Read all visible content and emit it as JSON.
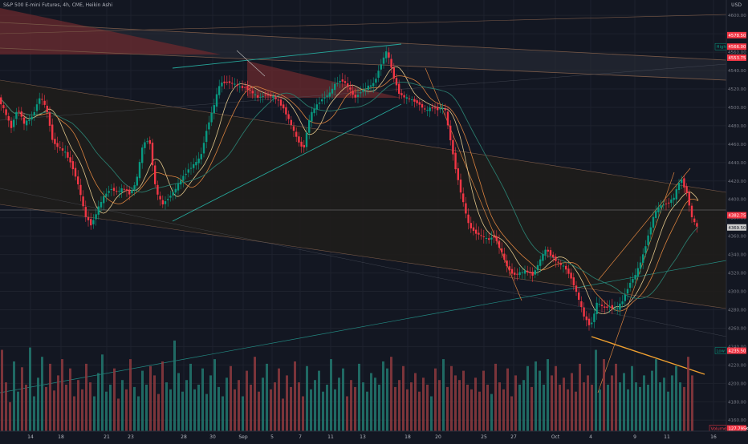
{
  "header": {
    "title": "S&P 500 E-mini Futures, 4h, CME, Heikin Ashi",
    "currency": "USD"
  },
  "price_axis": {
    "ticks": [
      "4600.00",
      "4580.00",
      "4560.00",
      "4540.00",
      "4520.00",
      "4500.00",
      "4480.00",
      "4460.00",
      "4440.00",
      "4420.00",
      "4400.00",
      "4380.00",
      "4360.00",
      "4340.00",
      "4320.00",
      "4300.00",
      "4280.00",
      "4260.00",
      "4240.00",
      "4220.00",
      "4200.00",
      "4180.00",
      "4160.00"
    ],
    "labels": [
      {
        "text": "4578.50",
        "color": "#f23645",
        "value": 4578.5
      },
      {
        "text": "High",
        "color": "#089981",
        "value": 4566
      },
      {
        "text": "4566.00",
        "color": "#f23645",
        "value": 4566
      },
      {
        "text": "4553.75",
        "color": "#f23645",
        "value": 4554
      },
      {
        "text": "4382.75",
        "color": "#f23645",
        "value": 4382.75
      },
      {
        "text": "4369.50",
        "color": "#cccccc",
        "value": 4369.5
      },
      {
        "text": "Low",
        "color": "#089981",
        "value": 4235.5
      },
      {
        "text": "4235.50",
        "color": "#f23645",
        "value": 4235.5
      },
      {
        "text": "Volume",
        "color": "#f23645",
        "value": 4151
      },
      {
        "text": "127.795K",
        "color": "#f23645",
        "value": 4151
      }
    ]
  },
  "time_axis": {
    "labels": [
      "14",
      "18",
      "21",
      "23",
      "28",
      "30",
      "Sep",
      "5",
      "7",
      "11",
      "13",
      "18",
      "20",
      "25",
      "27",
      "Oct",
      "4",
      "9",
      "11",
      "16"
    ]
  },
  "chart_data": {
    "type": "candlestick",
    "title": "S&P 500 E-mini Futures, 4h, CME, Heikin Ashi",
    "xlabel": "",
    "ylabel": "USD",
    "ylim": [
      4148,
      4608
    ],
    "grid": true,
    "up_color": "#089981",
    "down_color": "#f23645",
    "last_price": 4369.5,
    "session_high": 4566.0,
    "session_low": 4235.5,
    "last_volume": "127.795K",
    "price_path": [
      [
        0,
        4510
      ],
      [
        8,
        4495
      ],
      [
        16,
        4478
      ],
      [
        24,
        4500
      ],
      [
        32,
        4482
      ],
      [
        42,
        4490
      ],
      [
        52,
        4512
      ],
      [
        60,
        4498
      ],
      [
        68,
        4462
      ],
      [
        76,
        4456
      ],
      [
        84,
        4450
      ],
      [
        92,
        4436
      ],
      [
        100,
        4414
      ],
      [
        108,
        4382
      ],
      [
        116,
        4372
      ],
      [
        124,
        4390
      ],
      [
        132,
        4404
      ],
      [
        140,
        4412
      ],
      [
        148,
        4408
      ],
      [
        156,
        4412
      ],
      [
        164,
        4406
      ],
      [
        172,
        4420
      ],
      [
        180,
        4460
      ],
      [
        188,
        4466
      ],
      [
        196,
        4410
      ],
      [
        204,
        4394
      ],
      [
        212,
        4402
      ],
      [
        220,
        4410
      ],
      [
        228,
        4422
      ],
      [
        236,
        4432
      ],
      [
        244,
        4438
      ],
      [
        252,
        4446
      ],
      [
        260,
        4478
      ],
      [
        268,
        4500
      ],
      [
        276,
        4526
      ],
      [
        284,
        4528
      ],
      [
        292,
        4526
      ],
      [
        300,
        4522
      ],
      [
        308,
        4522
      ],
      [
        316,
        4516
      ],
      [
        324,
        4510
      ],
      [
        332,
        4514
      ],
      [
        340,
        4512
      ],
      [
        348,
        4508
      ],
      [
        356,
        4498
      ],
      [
        364,
        4482
      ],
      [
        372,
        4466
      ],
      [
        380,
        4454
      ],
      [
        388,
        4490
      ],
      [
        396,
        4502
      ],
      [
        404,
        4510
      ],
      [
        412,
        4514
      ],
      [
        420,
        4526
      ],
      [
        428,
        4530
      ],
      [
        436,
        4522
      ],
      [
        444,
        4510
      ],
      [
        452,
        4518
      ],
      [
        460,
        4522
      ],
      [
        468,
        4526
      ],
      [
        476,
        4546
      ],
      [
        484,
        4562
      ],
      [
        492,
        4534
      ],
      [
        500,
        4514
      ],
      [
        508,
        4510
      ],
      [
        516,
        4508
      ],
      [
        524,
        4504
      ],
      [
        532,
        4496
      ],
      [
        540,
        4500
      ],
      [
        548,
        4498
      ],
      [
        556,
        4500
      ],
      [
        562,
        4470
      ],
      [
        570,
        4432
      ],
      [
        578,
        4400
      ],
      [
        586,
        4372
      ],
      [
        594,
        4364
      ],
      [
        602,
        4360
      ],
      [
        610,
        4356
      ],
      [
        618,
        4360
      ],
      [
        626,
        4344
      ],
      [
        634,
        4326
      ],
      [
        642,
        4318
      ],
      [
        650,
        4320
      ],
      [
        658,
        4322
      ],
      [
        666,
        4318
      ],
      [
        674,
        4332
      ],
      [
        682,
        4346
      ],
      [
        690,
        4338
      ],
      [
        698,
        4330
      ],
      [
        706,
        4326
      ],
      [
        714,
        4314
      ],
      [
        722,
        4294
      ],
      [
        730,
        4272
      ],
      [
        738,
        4262
      ],
      [
        746,
        4288
      ],
      [
        754,
        4282
      ],
      [
        762,
        4284
      ],
      [
        770,
        4280
      ],
      [
        778,
        4290
      ],
      [
        786,
        4308
      ],
      [
        794,
        4318
      ],
      [
        802,
        4336
      ],
      [
        810,
        4362
      ],
      [
        818,
        4386
      ],
      [
        826,
        4394
      ],
      [
        834,
        4396
      ],
      [
        842,
        4402
      ],
      [
        850,
        4424
      ],
      [
        858,
        4406
      ],
      [
        864,
        4380
      ],
      [
        870,
        4370
      ]
    ],
    "volume": [
      [
        0,
        70
      ],
      [
        5,
        42
      ],
      [
        10,
        25
      ],
      [
        15,
        60
      ],
      [
        20,
        34
      ],
      [
        25,
        55
      ],
      [
        30,
        40
      ],
      [
        35,
        72
      ],
      [
        40,
        30
      ],
      [
        45,
        46
      ],
      [
        50,
        64
      ],
      [
        55,
        38
      ],
      [
        60,
        58
      ],
      [
        65,
        35
      ],
      [
        70,
        48
      ],
      [
        75,
        62
      ],
      [
        80,
        40
      ],
      [
        85,
        54
      ],
      [
        90,
        30
      ],
      [
        95,
        44
      ],
      [
        100,
        36
      ],
      [
        105,
        58
      ],
      [
        110,
        42
      ],
      [
        115,
        30
      ],
      [
        120,
        50
      ],
      [
        125,
        66
      ],
      [
        130,
        34
      ],
      [
        135,
        40
      ],
      [
        140,
        54
      ],
      [
        145,
        28
      ],
      [
        150,
        44
      ],
      [
        155,
        36
      ],
      [
        160,
        62
      ],
      [
        165,
        38
      ],
      [
        170,
        30
      ],
      [
        175,
        52
      ],
      [
        180,
        40
      ],
      [
        185,
        56
      ],
      [
        190,
        48
      ],
      [
        195,
        32
      ],
      [
        200,
        60
      ],
      [
        205,
        42
      ],
      [
        210,
        36
      ],
      [
        215,
        78
      ],
      [
        220,
        50
      ],
      [
        225,
        34
      ],
      [
        230,
        44
      ],
      [
        235,
        58
      ],
      [
        240,
        36
      ],
      [
        245,
        40
      ],
      [
        250,
        54
      ],
      [
        255,
        32
      ],
      [
        260,
        48
      ],
      [
        265,
        62
      ],
      [
        270,
        38
      ],
      [
        275,
        30
      ],
      [
        280,
        46
      ],
      [
        285,
        56
      ],
      [
        290,
        36
      ],
      [
        295,
        44
      ],
      [
        300,
        30
      ],
      [
        305,
        52
      ],
      [
        310,
        40
      ],
      [
        315,
        64
      ],
      [
        320,
        34
      ],
      [
        325,
        46
      ],
      [
        330,
        58
      ],
      [
        335,
        36
      ],
      [
        340,
        42
      ],
      [
        345,
        54
      ],
      [
        350,
        28
      ],
      [
        355,
        48
      ],
      [
        360,
        38
      ],
      [
        365,
        60
      ],
      [
        370,
        42
      ],
      [
        375,
        30
      ],
      [
        380,
        56
      ],
      [
        385,
        36
      ],
      [
        390,
        44
      ],
      [
        395,
        52
      ],
      [
        400,
        34
      ],
      [
        405,
        40
      ],
      [
        410,
        62
      ],
      [
        415,
        36
      ],
      [
        420,
        46
      ],
      [
        425,
        54
      ],
      [
        430,
        30
      ],
      [
        435,
        44
      ],
      [
        440,
        38
      ],
      [
        445,
        58
      ],
      [
        450,
        42
      ],
      [
        455,
        34
      ],
      [
        460,
        50
      ],
      [
        465,
        46
      ],
      [
        470,
        40
      ],
      [
        475,
        60
      ],
      [
        480,
        54
      ],
      [
        485,
        64
      ],
      [
        490,
        38
      ],
      [
        495,
        44
      ],
      [
        500,
        56
      ],
      [
        505,
        36
      ],
      [
        510,
        42
      ],
      [
        515,
        50
      ],
      [
        520,
        34
      ],
      [
        525,
        46
      ],
      [
        530,
        40
      ],
      [
        535,
        30
      ],
      [
        540,
        54
      ],
      [
        545,
        44
      ],
      [
        550,
        62
      ],
      [
        555,
        38
      ],
      [
        560,
        56
      ],
      [
        565,
        48
      ],
      [
        570,
        44
      ],
      [
        575,
        52
      ],
      [
        580,
        40
      ],
      [
        585,
        36
      ],
      [
        590,
        46
      ],
      [
        595,
        34
      ],
      [
        600,
        52
      ],
      [
        605,
        40
      ],
      [
        610,
        32
      ],
      [
        615,
        58
      ],
      [
        620,
        42
      ],
      [
        625,
        36
      ],
      [
        630,
        54
      ],
      [
        635,
        30
      ],
      [
        640,
        48
      ],
      [
        645,
        40
      ],
      [
        650,
        44
      ],
      [
        655,
        56
      ],
      [
        660,
        38
      ],
      [
        665,
        60
      ],
      [
        670,
        52
      ],
      [
        675,
        40
      ],
      [
        680,
        62
      ],
      [
        685,
        48
      ],
      [
        690,
        56
      ],
      [
        695,
        40
      ],
      [
        700,
        46
      ],
      [
        705,
        36
      ],
      [
        710,
        50
      ],
      [
        715,
        34
      ],
      [
        720,
        58
      ],
      [
        725,
        42
      ],
      [
        730,
        48
      ],
      [
        735,
        40
      ],
      [
        740,
        70
      ],
      [
        745,
        36
      ],
      [
        750,
        62
      ],
      [
        755,
        40
      ],
      [
        760,
        48
      ],
      [
        765,
        58
      ],
      [
        770,
        42
      ],
      [
        775,
        50
      ],
      [
        780,
        36
      ],
      [
        785,
        56
      ],
      [
        790,
        42
      ],
      [
        795,
        38
      ],
      [
        800,
        48
      ],
      [
        805,
        40
      ],
      [
        810,
        52
      ],
      [
        815,
        62
      ],
      [
        820,
        42
      ],
      [
        825,
        46
      ],
      [
        830,
        34
      ],
      [
        835,
        48
      ],
      [
        840,
        56
      ],
      [
        845,
        42
      ],
      [
        850,
        38
      ],
      [
        855,
        64
      ],
      [
        860,
        48
      ]
    ]
  }
}
